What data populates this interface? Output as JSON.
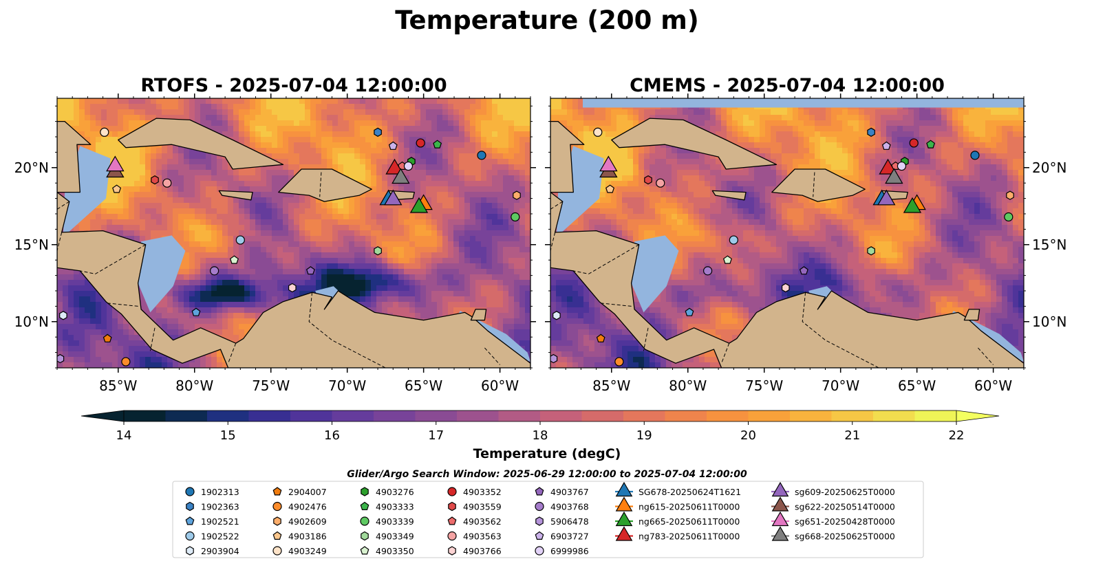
{
  "figure": {
    "title": "Temperature (200 m)",
    "window_note": "Glider/Argo Search Window: 2025-06-29 12:00:00 to 2025-07-04 12:00:00"
  },
  "chart_data": [
    {
      "type": "heatmap",
      "title": "RTOFS - 2025-07-04 12:00:00",
      "xlim": [
        -89,
        -58
      ],
      "ylim": [
        7,
        24.5
      ],
      "x_ticks": [
        "85°W",
        "80°W",
        "75°W",
        "70°W",
        "65°W",
        "60°W"
      ],
      "x_tick_values": [
        -85,
        -80,
        -75,
        -70,
        -65,
        -60
      ],
      "y_ticks": [
        "10°N",
        "15°N",
        "20°N"
      ],
      "y_tick_values": [
        10,
        15,
        20
      ],
      "y_tick_side": "left"
    },
    {
      "type": "heatmap",
      "title": "CMEMS - 2025-07-04 12:00:00",
      "xlim": [
        -89,
        -58
      ],
      "ylim": [
        7,
        24.5
      ],
      "x_ticks": [
        "85°W",
        "80°W",
        "75°W",
        "70°W",
        "65°W",
        "60°W"
      ],
      "x_tick_values": [
        -85,
        -80,
        -75,
        -70,
        -65,
        -60
      ],
      "y_ticks": [
        "10°N",
        "15°N",
        "20°N"
      ],
      "y_tick_values": [
        10,
        15,
        20
      ],
      "y_tick_side": "right"
    }
  ],
  "colorbar": {
    "label": "Temperature (degC)",
    "min": 14,
    "max": 22,
    "step": 0.5,
    "ticks": [
      "14",
      "15",
      "16",
      "17",
      "18",
      "19",
      "20",
      "21",
      "22"
    ],
    "tick_values": [
      14,
      15,
      16,
      17,
      18,
      19,
      20,
      21,
      22
    ],
    "colors": [
      "#062330",
      "#0d2a52",
      "#1f3080",
      "#382f92",
      "#50349a",
      "#653c9c",
      "#784399",
      "#8a4b94",
      "#9d528e",
      "#b25b85",
      "#c5617a",
      "#d56b6a",
      "#e4775c",
      "#ef844c",
      "#f7923f",
      "#f9a13a",
      "#f9b33d",
      "#f6c745",
      "#f2dd4e",
      "#eff457"
    ]
  },
  "legend": {
    "columns": [
      [
        {
          "label": "1902313",
          "marker": "circle",
          "color": "#1f77b4"
        },
        {
          "label": "1902363",
          "marker": "hexagon",
          "color": "#3b82c4"
        },
        {
          "label": "1902521",
          "marker": "pentagon",
          "color": "#5ea3dc"
        },
        {
          "label": "1902522",
          "marker": "circle",
          "color": "#9ecae9"
        },
        {
          "label": "2903904",
          "marker": "hexagon",
          "color": "#deebf7"
        }
      ],
      [
        {
          "label": "2904007",
          "marker": "pentagon",
          "color": "#f17c0e"
        },
        {
          "label": "4902476",
          "marker": "circle",
          "color": "#fb8c2b"
        },
        {
          "label": "4902609",
          "marker": "hexagon",
          "color": "#fdae6b"
        },
        {
          "label": "4903186",
          "marker": "pentagon",
          "color": "#fdc88e"
        },
        {
          "label": "4903249",
          "marker": "circle",
          "color": "#fee3c8"
        }
      ],
      [
        {
          "label": "4903276",
          "marker": "hexagon",
          "color": "#2ca02c"
        },
        {
          "label": "4903333",
          "marker": "pentagon",
          "color": "#3cb44b"
        },
        {
          "label": "4903339",
          "marker": "circle",
          "color": "#5ec962"
        },
        {
          "label": "4903349",
          "marker": "hexagon",
          "color": "#a1d99b"
        },
        {
          "label": "4903350",
          "marker": "pentagon",
          "color": "#d9f2d0"
        }
      ],
      [
        {
          "label": "4903352",
          "marker": "circle",
          "color": "#d62728"
        },
        {
          "label": "4903559",
          "marker": "hexagon",
          "color": "#e04a4a"
        },
        {
          "label": "4903562",
          "marker": "pentagon",
          "color": "#ec6c6c"
        },
        {
          "label": "4903563",
          "marker": "circle",
          "color": "#f4a3a3"
        },
        {
          "label": "4903766",
          "marker": "hexagon",
          "color": "#fbd3d3"
        }
      ],
      [
        {
          "label": "4903767",
          "marker": "pentagon",
          "color": "#9467bd"
        },
        {
          "label": "4903768",
          "marker": "circle",
          "color": "#a57ccb"
        },
        {
          "label": "5906478",
          "marker": "hexagon",
          "color": "#b594da"
        },
        {
          "label": "6903727",
          "marker": "pentagon",
          "color": "#cbb2ea"
        },
        {
          "label": "6999986",
          "marker": "circle",
          "color": "#e2d2f7"
        }
      ],
      [
        {
          "label": "SG678-20250624T1621",
          "marker": "triangle",
          "color": "#1f77b4"
        },
        {
          "label": "ng615-20250611T0000",
          "marker": "triangle",
          "color": "#ff7f0e"
        },
        {
          "label": "ng665-20250611T0000",
          "marker": "triangle",
          "color": "#2ca02c"
        },
        {
          "label": "ng783-20250611T0000",
          "marker": "triangle",
          "color": "#d62728"
        }
      ],
      [
        {
          "label": "sg609-20250625T0000",
          "marker": "triangle",
          "color": "#9467bd"
        },
        {
          "label": "sg622-20250514T0000",
          "marker": "triangle",
          "color": "#8c564b"
        },
        {
          "label": "sg651-20250428T0000",
          "marker": "triangle",
          "color": "#e377c2"
        },
        {
          "label": "sg668-20250625T0000",
          "marker": "triangle",
          "color": "#7f7f7f"
        }
      ]
    ]
  },
  "argo_floats": [
    {
      "id": "1902313",
      "lon": -61.2,
      "lat": 20.8
    },
    {
      "id": "1902363",
      "lon": -68.0,
      "lat": 22.3
    },
    {
      "id": "1902521",
      "lon": -79.9,
      "lat": 10.6
    },
    {
      "id": "1902522",
      "lon": -77.0,
      "lat": 15.3
    },
    {
      "id": "2903904",
      "lon": -88.6,
      "lat": 10.4
    },
    {
      "id": "2904007",
      "lon": -85.7,
      "lat": 8.9
    },
    {
      "id": "4902476",
      "lon": -84.5,
      "lat": 7.4
    },
    {
      "id": "4902609",
      "lon": -58.9,
      "lat": 18.2
    },
    {
      "id": "4903186",
      "lon": -85.1,
      "lat": 18.6
    },
    {
      "id": "4903249",
      "lon": -85.9,
      "lat": 22.3
    },
    {
      "id": "4903276",
      "lon": -65.8,
      "lat": 20.4
    },
    {
      "id": "4903333",
      "lon": -64.1,
      "lat": 21.5
    },
    {
      "id": "4903339",
      "lon": -59.0,
      "lat": 16.8
    },
    {
      "id": "4903349",
      "lon": -68.0,
      "lat": 14.6
    },
    {
      "id": "4903350",
      "lon": -77.4,
      "lat": 14.0
    },
    {
      "id": "4903352",
      "lon": -65.2,
      "lat": 21.6
    },
    {
      "id": "4903559",
      "lon": -82.6,
      "lat": 19.2
    },
    {
      "id": "4903562",
      "lon": -66.4,
      "lat": 20.1
    },
    {
      "id": "4903563",
      "lon": -81.8,
      "lat": 19.0
    },
    {
      "id": "4903766",
      "lon": -73.6,
      "lat": 12.2
    },
    {
      "id": "4903767",
      "lon": -72.4,
      "lat": 13.3
    },
    {
      "id": "4903768",
      "lon": -78.7,
      "lat": 13.3
    },
    {
      "id": "5906478",
      "lon": -88.8,
      "lat": 7.6
    },
    {
      "id": "6903727",
      "lon": -67.0,
      "lat": 21.4
    },
    {
      "id": "6999986",
      "lon": -66.0,
      "lat": 20.1
    }
  ],
  "gliders": [
    {
      "id": "SG678-20250624T1621",
      "lon": -67.3,
      "lat": 17.9
    },
    {
      "id": "ng615-20250611T0000",
      "lon": -65.0,
      "lat": 17.6
    },
    {
      "id": "ng665-20250611T0000",
      "lon": -65.3,
      "lat": 17.4
    },
    {
      "id": "ng783-20250611T0000",
      "lon": -66.9,
      "lat": 19.9
    },
    {
      "id": "sg609-20250625T0000",
      "lon": -67.0,
      "lat": 17.9
    },
    {
      "id": "sg622-20250514T0000",
      "lon": -85.2,
      "lat": 19.7
    },
    {
      "id": "sg651-20250428T0000",
      "lon": -85.2,
      "lat": 20.1
    },
    {
      "id": "sg668-20250625T0000",
      "lon": -66.5,
      "lat": 19.3
    }
  ]
}
